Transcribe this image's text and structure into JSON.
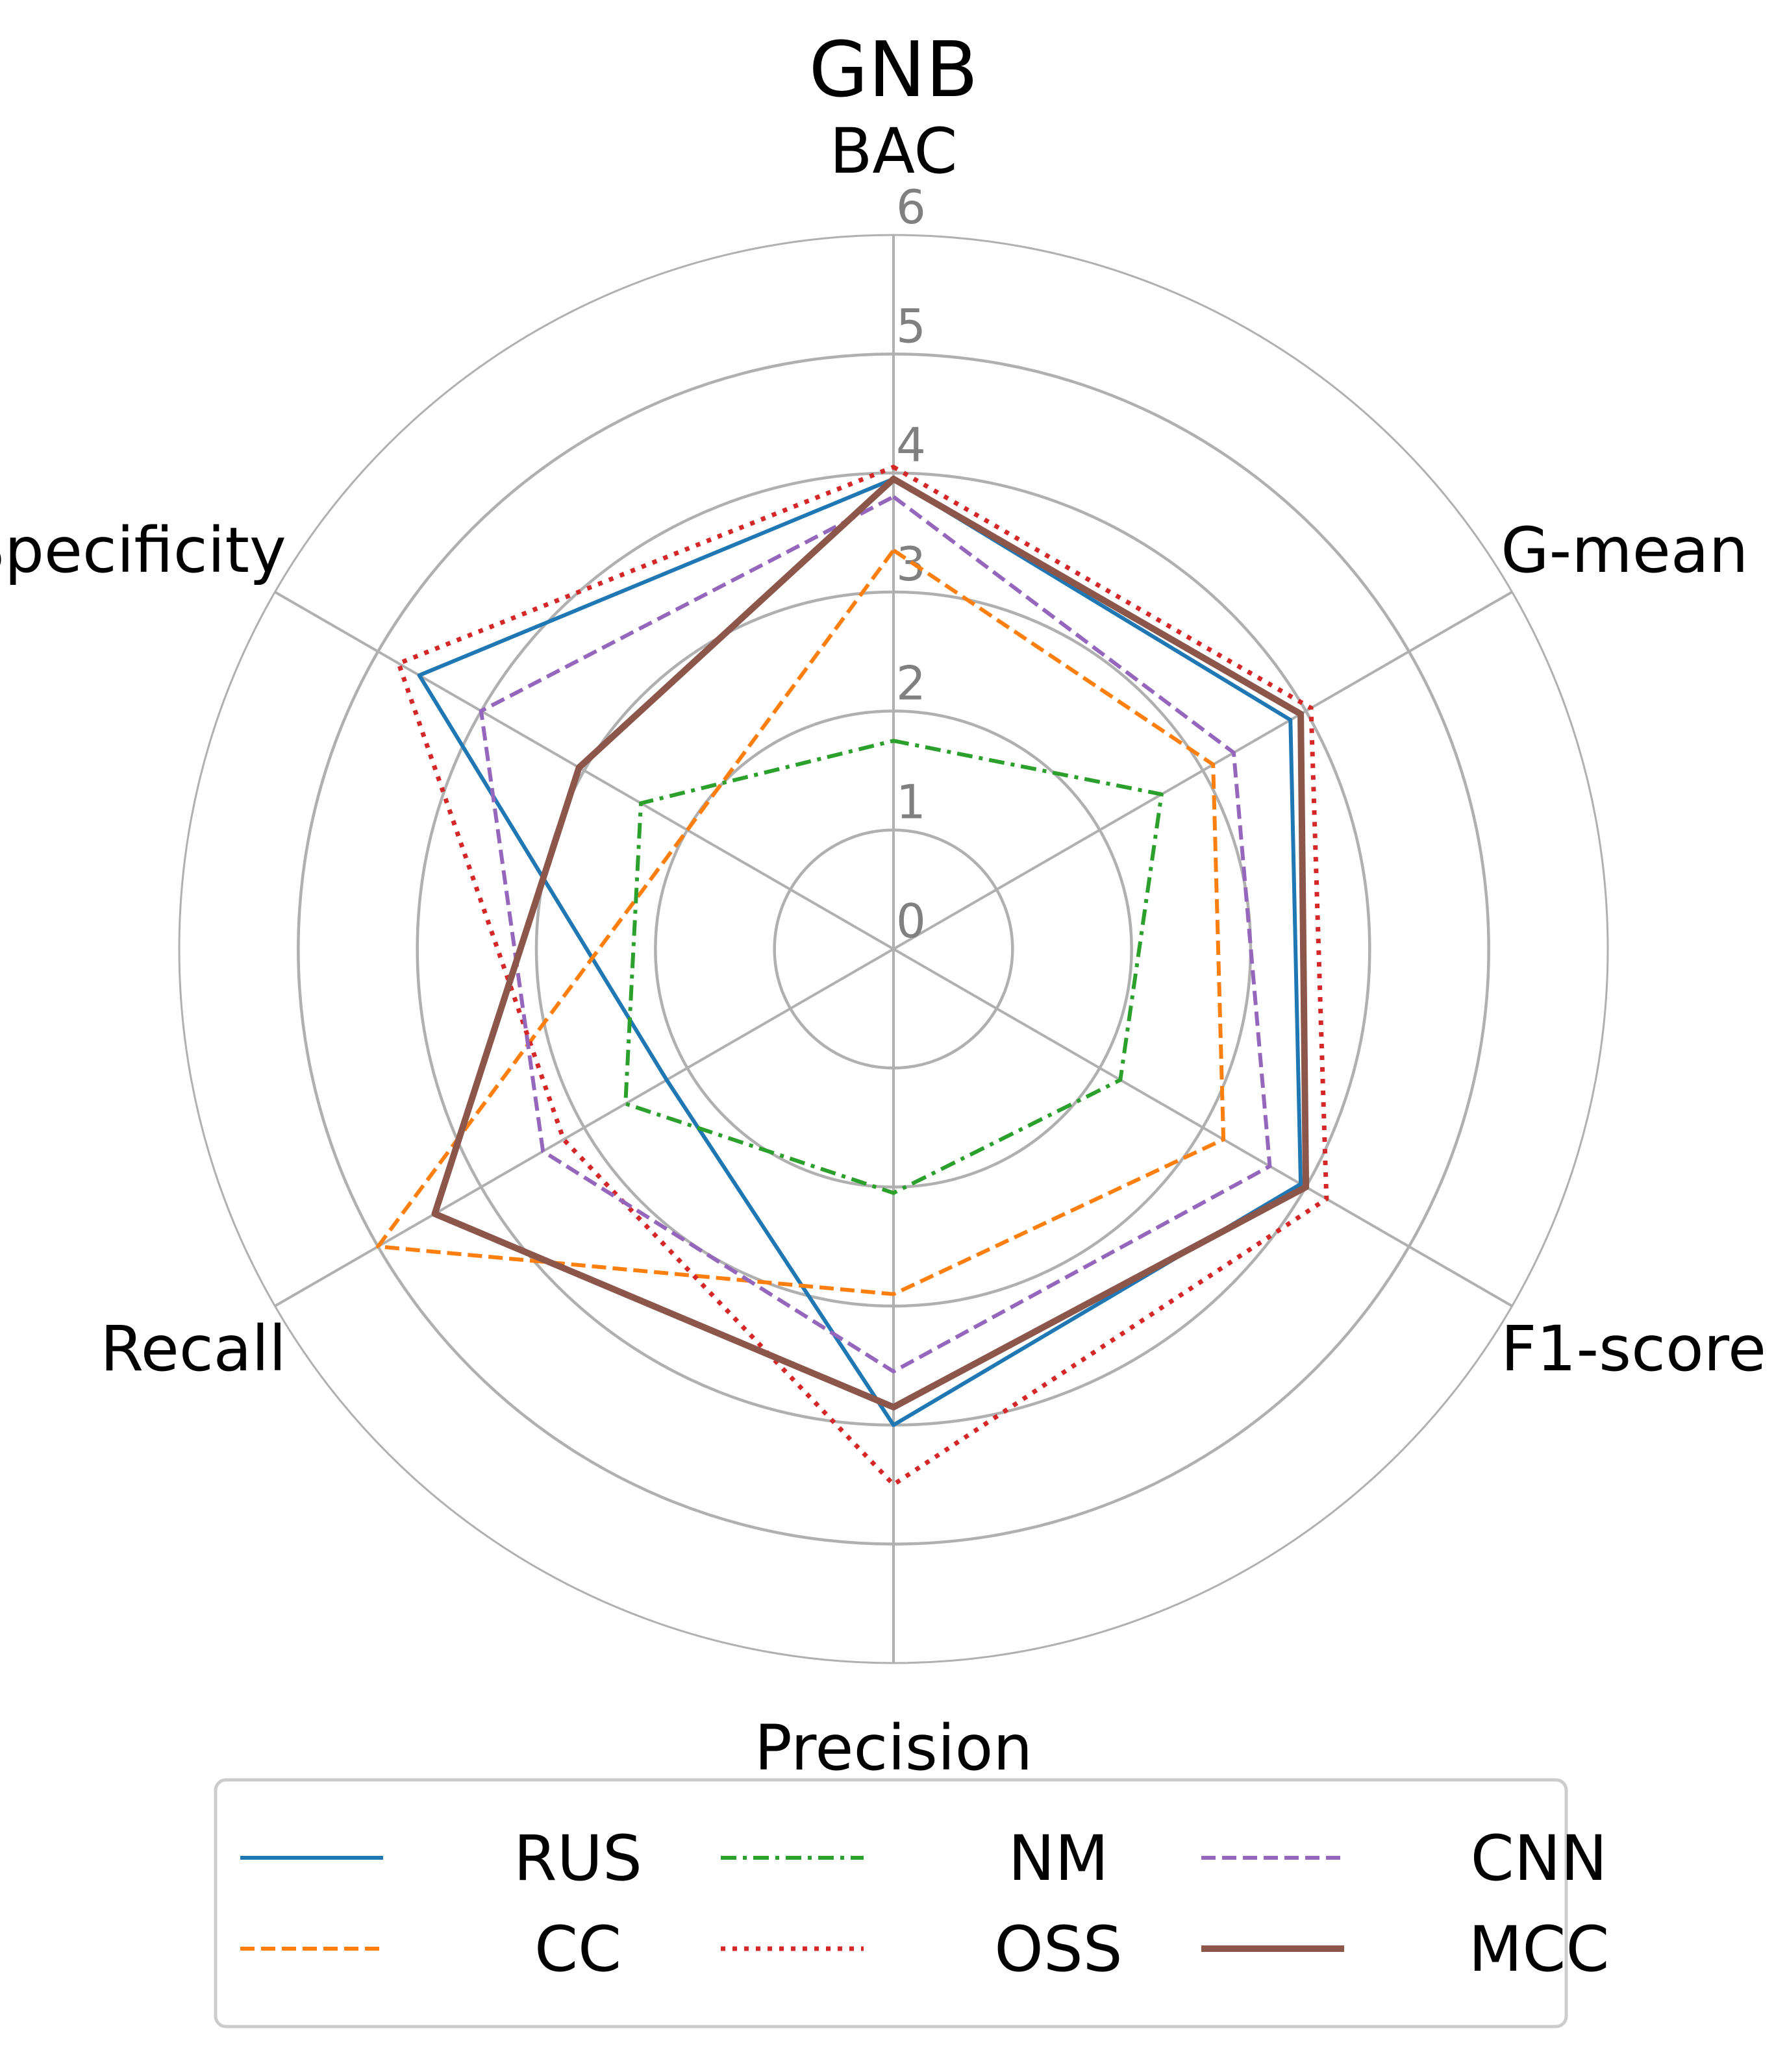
{
  "chart_data": {
    "type": "radar",
    "title": "GNB",
    "axes": [
      "BAC",
      "G-mean",
      "F1-score",
      "Precision",
      "Recall",
      "Specificity"
    ],
    "rlim": [
      0,
      6
    ],
    "rticks": [
      "0",
      "1",
      "2",
      "3",
      "4",
      "5",
      "6"
    ],
    "grid": true,
    "legend": "bottom",
    "series": [
      {
        "name": "RUS",
        "color": "#1f77b4",
        "style": "solid",
        "values": [
          3.95,
          3.85,
          3.95,
          4.0,
          2.2,
          4.6
        ]
      },
      {
        "name": "CC",
        "color": "#ff7f0e",
        "style": "dashed",
        "values": [
          3.35,
          3.1,
          3.2,
          2.9,
          5.0,
          2.0
        ]
      },
      {
        "name": "NM",
        "color": "#2ca02c",
        "style": "dashdot",
        "values": [
          1.75,
          2.6,
          2.2,
          2.05,
          2.6,
          2.45
        ]
      },
      {
        "name": "OSS",
        "color": "#d62728",
        "style": "dotted",
        "values": [
          4.05,
          4.05,
          4.2,
          4.5,
          3.2,
          4.8
        ]
      },
      {
        "name": "CNN",
        "color": "#9467bd",
        "style": "dashed",
        "values": [
          3.8,
          3.3,
          3.65,
          3.55,
          3.4,
          4.0
        ]
      },
      {
        "name": "MCC",
        "color": "#8c564b",
        "style": "solid-thick",
        "values": [
          3.95,
          3.95,
          4.0,
          3.85,
          4.45,
          3.05
        ]
      }
    ]
  }
}
